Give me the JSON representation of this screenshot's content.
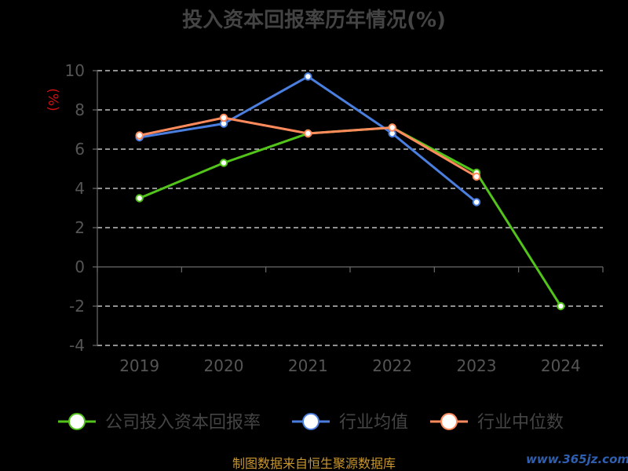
{
  "chart_data": {
    "type": "line",
    "title": "投入资本回报率历年情况(%)",
    "ylabel": "(%)",
    "xlabel": "",
    "categories": [
      "2019",
      "2020",
      "2021",
      "2022",
      "2023",
      "2024"
    ],
    "ylim": [
      -4,
      10
    ],
    "yticks": [
      10,
      8,
      6,
      4,
      2,
      0,
      -2,
      -4
    ],
    "grid": true,
    "legend_position": "bottom",
    "series": [
      {
        "name": "公司投入资本回报率",
        "color": "#52c41a",
        "values": [
          3.5,
          5.3,
          6.8,
          7.1,
          4.8,
          -2.0
        ]
      },
      {
        "name": "行业均值",
        "color": "#4a7fe0",
        "values": [
          6.6,
          7.3,
          9.7,
          6.8,
          3.3,
          null
        ]
      },
      {
        "name": "行业中位数",
        "color": "#ff8a5c",
        "values": [
          6.7,
          7.6,
          6.8,
          7.1,
          4.6,
          null
        ]
      }
    ]
  },
  "footer": {
    "source": "制图数据来自恒生聚源数据库",
    "watermark": "www.365jz.com"
  }
}
